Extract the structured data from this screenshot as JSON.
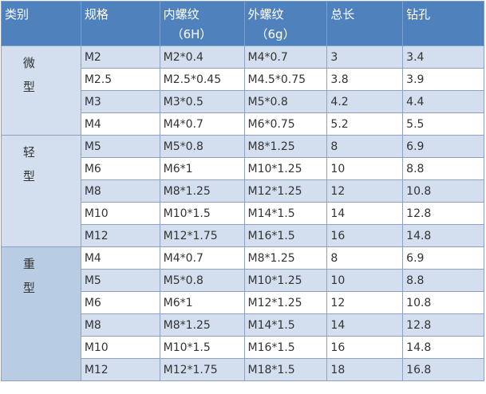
{
  "headers": [
    {
      "label": "类别"
    },
    {
      "label": "规格"
    },
    {
      "label": "内螺纹",
      "sub": "（6H）"
    },
    {
      "label": "外螺纹",
      "sub": "（6g）"
    },
    {
      "label": "总长"
    },
    {
      "label": "钻孔"
    }
  ],
  "groups": [
    {
      "category": [
        "微",
        "型"
      ],
      "rows": [
        [
          "M2",
          "M2*0.4",
          "M4*0.7",
          "3",
          "3.4"
        ],
        [
          "M2.5",
          "M2.5*0.45",
          "M4.5*0.75",
          "3.8",
          "3.9"
        ],
        [
          "M3",
          "M3*0.5",
          "M5*0.8",
          "4.2",
          "4.4"
        ],
        [
          "M4",
          "M4*0.7",
          "M6*0.75",
          "5.2",
          "5.5"
        ]
      ]
    },
    {
      "category": [
        "轻",
        "型"
      ],
      "rows": [
        [
          "M5",
          "M5*0.8",
          "M8*1.25",
          "8",
          "6.9"
        ],
        [
          "M6",
          "M6*1",
          "M10*1.25",
          "10",
          "8.8"
        ],
        [
          "M8",
          "M8*1.25",
          "M12*1.25",
          "12",
          "10.8"
        ],
        [
          "M10",
          "M10*1.5",
          "M14*1.5",
          "14",
          "12.8"
        ],
        [
          "M12",
          "M12*1.75",
          "M16*1.5",
          "16",
          "14.8"
        ]
      ]
    },
    {
      "category": [
        "重",
        "型"
      ],
      "rows": [
        [
          "M4",
          "M4*0.7",
          "M8*1.25",
          "8",
          "6.9"
        ],
        [
          "M5",
          "M5*0.8",
          "M10*1.25",
          "10",
          "8.8"
        ],
        [
          "M6",
          "M6*1",
          "M12*1.25",
          "12",
          "10.8"
        ],
        [
          "M8",
          "M8*1.25",
          "M14*1.5",
          "14",
          "12.8"
        ],
        [
          "M10",
          "M10*1.5",
          "M16*1.5",
          "16",
          "14.8"
        ],
        [
          "M12",
          "M12*1.75",
          "M18*1.5",
          "18",
          "16.8"
        ]
      ]
    }
  ],
  "colors": {
    "header": "#4f81bd",
    "row_light": "#d3dfee",
    "row_white": "#ffffff",
    "heavy_category": "#b8cce4"
  }
}
